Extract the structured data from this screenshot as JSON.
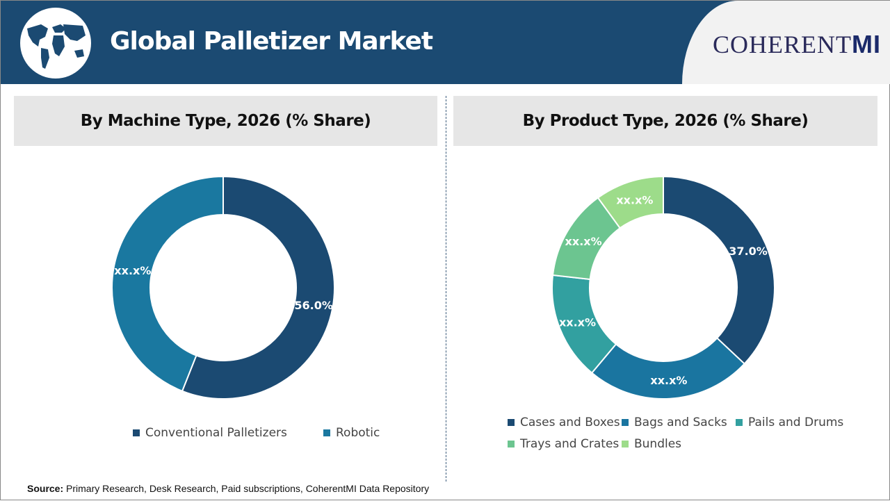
{
  "header": {
    "title": "Global Palletizer Market",
    "brand_text": "COHERENT",
    "brand_suffix": "MI"
  },
  "chart_data": [
    {
      "type": "pie",
      "variant": "donut",
      "title": "By Machine Type, 2026 (% Share)",
      "categories": [
        "Conventional Palletizers",
        "Robotic"
      ],
      "colors": [
        "#1b4a72",
        "#1a78a0"
      ],
      "labels": [
        "56.0%",
        "xx.x%"
      ],
      "printed_values": [
        56.0,
        null
      ],
      "estimated_values": [
        56.0,
        44.0
      ],
      "legend": "bottom"
    },
    {
      "type": "pie",
      "variant": "donut",
      "title": "By Product Type, 2026 (% Share)",
      "categories": [
        "Cases and Boxes",
        "Bags and Sacks",
        "Pails and Drums",
        "Trays and Crates",
        "Bundles"
      ],
      "colors": [
        "#1b4a72",
        "#1a75a0",
        "#32a0a0",
        "#6cc590",
        "#9ddc8a"
      ],
      "labels": [
        "37.0%",
        "xx.x%",
        "xx.x%",
        "xx.x%",
        "xx.x%"
      ],
      "printed_values": [
        37.0,
        null,
        null,
        null,
        null
      ],
      "estimated_values": [
        37.0,
        24.1,
        15.7,
        13.2,
        10.0
      ],
      "legend": "bottom"
    }
  ],
  "source": {
    "label": "Source:",
    "text": " Primary Research, Desk Research, Paid subscriptions, CoherentMI Data Repository"
  }
}
